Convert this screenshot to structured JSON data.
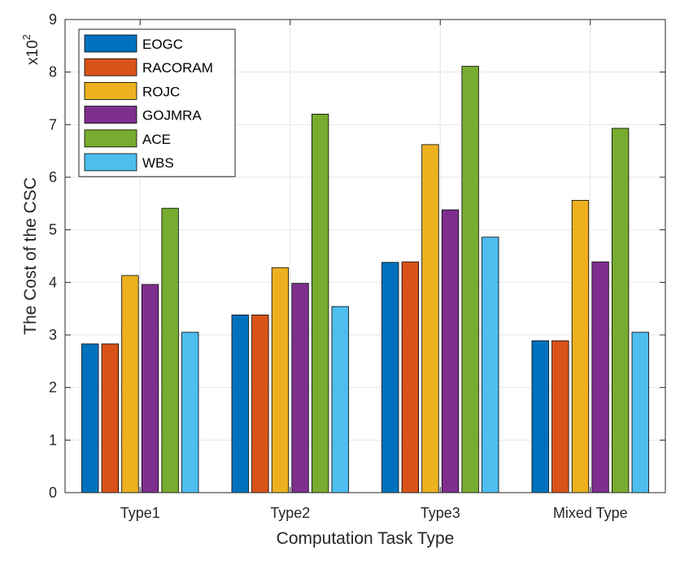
{
  "chart_data": {
    "type": "bar",
    "categories": [
      "Type1",
      "Type2",
      "Type3",
      "Mixed Type"
    ],
    "series": [
      {
        "name": "EOGC",
        "color": "#0072BD",
        "values": [
          2.83,
          3.38,
          4.38,
          2.89
        ]
      },
      {
        "name": "RACORAM",
        "color": "#D95319",
        "values": [
          2.83,
          3.38,
          4.39,
          2.89
        ]
      },
      {
        "name": "ROJC",
        "color": "#EDB120",
        "values": [
          4.13,
          4.28,
          6.62,
          5.56
        ]
      },
      {
        "name": "GOJMRA",
        "color": "#7E2F8E",
        "values": [
          3.96,
          3.98,
          5.38,
          4.39
        ]
      },
      {
        "name": "ACE",
        "color": "#77AC30",
        "values": [
          5.41,
          7.2,
          8.11,
          6.93
        ]
      },
      {
        "name": "WBS",
        "color": "#4DBEEE",
        "values": [
          3.05,
          3.54,
          4.86,
          3.05
        ]
      }
    ],
    "xlabel": "Computation Task Type",
    "ylabel": "The Cost of the CSC",
    "ylim": [
      0,
      9
    ],
    "yticks": [
      "0",
      "1",
      "2",
      "3",
      "4",
      "5",
      "6",
      "7",
      "8",
      "9"
    ],
    "exponent_base": "x10",
    "exponent_power": "2",
    "grid": true,
    "legend_position": "top-left"
  }
}
